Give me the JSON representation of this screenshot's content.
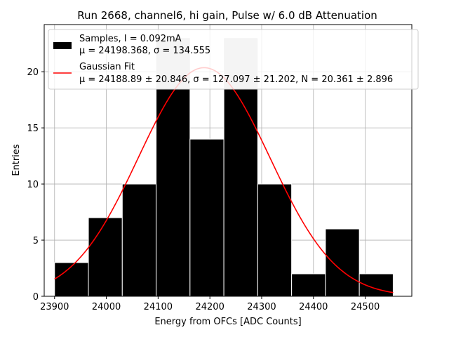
{
  "chart_data": {
    "type": "bar",
    "title": "Run 2668, channel6, hi gain, Pulse w/ 6.0 dB Attenuation",
    "xlabel": "Energy from OFCs [ADC Counts]",
    "ylabel": "Entries",
    "xlim": [
      23880,
      24590
    ],
    "ylim": [
      0,
      24.2
    ],
    "xticks": [
      23900,
      24000,
      24100,
      24200,
      24300,
      24400,
      24500
    ],
    "yticks": [
      0,
      5,
      10,
      15,
      20
    ],
    "grid": true,
    "legend_position": "top-right",
    "histogram": {
      "name": "Samples, I = 0.092mA",
      "stats": "μ = 24198.368, σ = 134.555",
      "bin_edges": [
        23900,
        23965.4,
        24030.8,
        24096.2,
        24161.6,
        24227.0,
        24292.4,
        24357.8,
        24423.2,
        24488.6,
        24554.0
      ],
      "counts": [
        3,
        7,
        10,
        23,
        14,
        23,
        10,
        2,
        6,
        2
      ],
      "color": "#000000",
      "edge_color": "#ffffff",
      "behind_legend_color": "#c9c9c9"
    },
    "fit": {
      "name": "Gaussian Fit",
      "stats": "μ = 24188.89 ± 20.846, σ = 127.097 ± 21.202, N = 20.361 ± 2.896",
      "mu": 24188.89,
      "sigma": 127.097,
      "N": 20.361,
      "x_range": [
        23900,
        24554
      ],
      "color": "#ff0000"
    }
  }
}
